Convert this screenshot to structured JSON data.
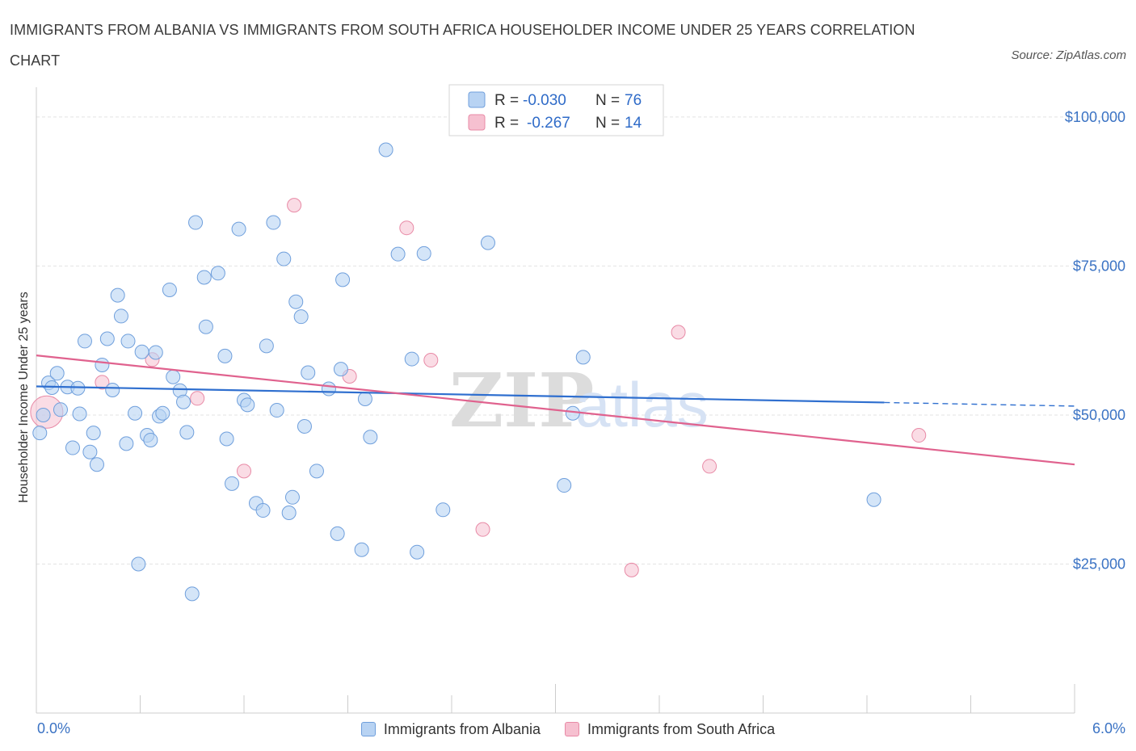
{
  "title": "IMMIGRANTS FROM ALBANIA VS IMMIGRANTS FROM SOUTH AFRICA HOUSEHOLDER INCOME UNDER 25 YEARS CORRELATION CHART",
  "source": "Source: ZipAtlas.com",
  "watermark": {
    "zip": "ZIP",
    "atlas": "atlas"
  },
  "colors": {
    "albania_fill": "#b8d3f3",
    "albania_stroke": "#6f9fdc",
    "albania_line": "#2f6fcf",
    "southafrica_fill": "#f6c0d0",
    "southafrica_stroke": "#e88aa6",
    "southafrica_line": "#e0628e"
  },
  "legend": {
    "rows": [
      {
        "r_label": "R = ",
        "r_value": "-0.030",
        "n_label": "N = ",
        "n_value": "76"
      },
      {
        "r_label": "R = ",
        "r_value": "-0.267",
        "n_label": "N = ",
        "n_value": "14"
      }
    ]
  },
  "chart_data": {
    "type": "scatter",
    "xlabel": "",
    "ylabel": "Householder Income Under 25 years",
    "xlim": [
      0,
      6
    ],
    "ylim": [
      0,
      105000
    ],
    "x_tick_labels": [
      "0.0%",
      "6.0%"
    ],
    "y_ticks": [
      {
        "value": 25000,
        "label": "$25,000"
      },
      {
        "value": 50000,
        "label": "$50,000"
      },
      {
        "value": 75000,
        "label": "$75,000"
      },
      {
        "value": 100000,
        "label": "$100,000"
      }
    ],
    "grid": true,
    "series": [
      {
        "name": "Immigrants from Albania",
        "trend": {
          "x0": 0.0,
          "y0": 54800,
          "x1": 4.9,
          "y1": 52100,
          "dash_to_x": 6.0,
          "dash_to_y": 51500
        },
        "points": [
          [
            0.02,
            47000
          ],
          [
            0.04,
            50000
          ],
          [
            0.07,
            55400
          ],
          [
            0.09,
            54600
          ],
          [
            0.12,
            57000
          ],
          [
            0.14,
            50900
          ],
          [
            0.18,
            54700
          ],
          [
            0.21,
            44500
          ],
          [
            0.24,
            54500
          ],
          [
            0.25,
            50200
          ],
          [
            0.28,
            62400
          ],
          [
            0.31,
            43800
          ],
          [
            0.33,
            47000
          ],
          [
            0.35,
            41700
          ],
          [
            0.38,
            58400
          ],
          [
            0.41,
            62800
          ],
          [
            0.44,
            54200
          ],
          [
            0.47,
            70100
          ],
          [
            0.49,
            66600
          ],
          [
            0.52,
            45200
          ],
          [
            0.53,
            62400
          ],
          [
            0.57,
            50300
          ],
          [
            0.59,
            25000
          ],
          [
            0.61,
            60600
          ],
          [
            0.64,
            46600
          ],
          [
            0.66,
            45800
          ],
          [
            0.69,
            60500
          ],
          [
            0.71,
            49800
          ],
          [
            0.73,
            50300
          ],
          [
            0.77,
            71000
          ],
          [
            0.79,
            56400
          ],
          [
            0.83,
            54100
          ],
          [
            0.85,
            52200
          ],
          [
            0.87,
            47100
          ],
          [
            0.9,
            20000
          ],
          [
            0.92,
            82300
          ],
          [
            0.97,
            73100
          ],
          [
            0.98,
            64800
          ],
          [
            1.05,
            73800
          ],
          [
            1.09,
            59900
          ],
          [
            1.1,
            46000
          ],
          [
            1.13,
            38500
          ],
          [
            1.17,
            81200
          ],
          [
            1.2,
            52500
          ],
          [
            1.22,
            51700
          ],
          [
            1.27,
            35200
          ],
          [
            1.31,
            34000
          ],
          [
            1.33,
            61600
          ],
          [
            1.37,
            82300
          ],
          [
            1.39,
            50800
          ],
          [
            1.43,
            76200
          ],
          [
            1.46,
            33600
          ],
          [
            1.48,
            36200
          ],
          [
            1.5,
            69000
          ],
          [
            1.53,
            66500
          ],
          [
            1.55,
            48100
          ],
          [
            1.57,
            57100
          ],
          [
            1.62,
            40600
          ],
          [
            1.69,
            54400
          ],
          [
            1.74,
            30100
          ],
          [
            1.76,
            57700
          ],
          [
            1.77,
            72700
          ],
          [
            1.88,
            27400
          ],
          [
            1.9,
            52700
          ],
          [
            1.93,
            46300
          ],
          [
            2.02,
            94500
          ],
          [
            2.09,
            77000
          ],
          [
            2.17,
            59400
          ],
          [
            2.2,
            27000
          ],
          [
            2.24,
            77100
          ],
          [
            2.35,
            34100
          ],
          [
            2.61,
            78900
          ],
          [
            3.05,
            38200
          ],
          [
            3.1,
            50300
          ],
          [
            3.16,
            59700
          ],
          [
            4.84,
            35800
          ]
        ]
      },
      {
        "name": "Immigrants from South Africa",
        "trend": {
          "x0": 0.0,
          "y0": 60000,
          "x1": 6.0,
          "y1": 41700
        },
        "points": [
          [
            0.06,
            50500
          ],
          [
            0.38,
            55500
          ],
          [
            0.67,
            59300
          ],
          [
            0.93,
            52800
          ],
          [
            1.2,
            40600
          ],
          [
            1.49,
            85200
          ],
          [
            1.81,
            56500
          ],
          [
            2.14,
            81400
          ],
          [
            2.28,
            59200
          ],
          [
            2.58,
            30800
          ],
          [
            3.44,
            24000
          ],
          [
            3.71,
            63900
          ],
          [
            3.89,
            41400
          ],
          [
            5.1,
            46600
          ]
        ]
      }
    ]
  }
}
